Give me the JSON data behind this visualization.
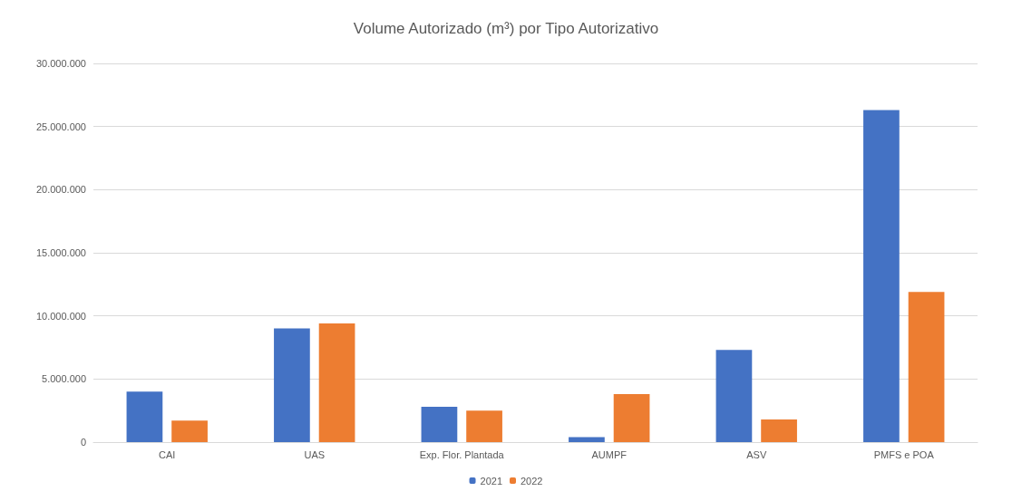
{
  "chart_data": {
    "type": "bar",
    "title": "Volume Autorizado (m³) por Tipo Autorizativo",
    "categories": [
      "CAI",
      "UAS",
      "Exp. Flor. Plantada",
      "AUMPF",
      "ASV",
      "PMFS e POA"
    ],
    "series": [
      {
        "name": "2021",
        "color": "#4472c4",
        "values": [
          4000000,
          9000000,
          2800000,
          400000,
          7300000,
          26300000
        ]
      },
      {
        "name": "2022",
        "color": "#ed7d31",
        "values": [
          1700000,
          9400000,
          2500000,
          3800000,
          1800000,
          11900000
        ]
      }
    ],
    "ylim": [
      0,
      30000000
    ],
    "yticks": [
      {
        "value": 0,
        "label": "0"
      },
      {
        "value": 5000000,
        "label": "5.000.000"
      },
      {
        "value": 10000000,
        "label": "10.000.000"
      },
      {
        "value": 15000000,
        "label": "15.000.000"
      },
      {
        "value": 20000000,
        "label": "20.000.000"
      },
      {
        "value": 25000000,
        "label": "25.000.000"
      },
      {
        "value": 30000000,
        "label": "30.000.000"
      }
    ],
    "grid": "y",
    "legend": "bottom"
  }
}
